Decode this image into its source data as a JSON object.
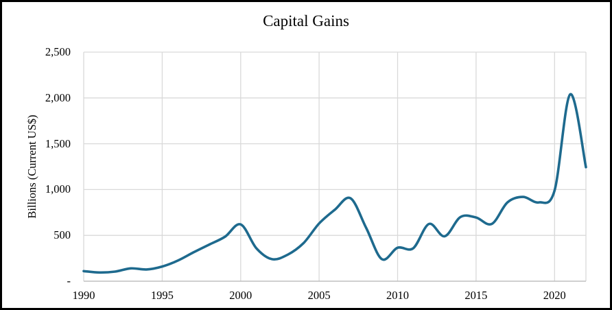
{
  "frame": {
    "border_color": "#000000",
    "background_color": "#ffffff"
  },
  "chart_data": {
    "type": "line",
    "title": "Capital Gains",
    "xlabel": "",
    "ylabel": "Billions (Current US$)",
    "x": [
      1990,
      1991,
      1992,
      1993,
      1994,
      1995,
      1996,
      1997,
      1998,
      1999,
      2000,
      2001,
      2002,
      2003,
      2004,
      2005,
      2006,
      2007,
      2008,
      2009,
      2010,
      2011,
      2012,
      2013,
      2014,
      2015,
      2016,
      2017,
      2018,
      2019,
      2020,
      2021,
      2022
    ],
    "values": [
      110,
      95,
      105,
      140,
      128,
      160,
      225,
      315,
      400,
      485,
      620,
      360,
      240,
      290,
      415,
      630,
      780,
      905,
      580,
      240,
      365,
      360,
      625,
      490,
      700,
      695,
      625,
      860,
      920,
      860,
      990,
      2040,
      1245
    ],
    "series_name": "Capital Gains",
    "xlim": [
      1990,
      2022
    ],
    "ylim": [
      0,
      2500
    ],
    "x_ticks": [
      1990,
      1995,
      2000,
      2005,
      2010,
      2015,
      2020
    ],
    "x_tick_labels": [
      "1990",
      "1995",
      "2000",
      "2005",
      "2010",
      "2015",
      "2020"
    ],
    "y_ticks": [
      0,
      500,
      1000,
      1500,
      2000,
      2500
    ],
    "y_tick_labels": [
      "-",
      "500",
      "1,000",
      "1,500",
      "2,000",
      "2,500"
    ],
    "grid": true,
    "smooth": true,
    "legend": "none",
    "line_color": "#1e6a8e",
    "gridline_color": "#d9d9d9",
    "axis_line_color": "#bfbfbf"
  }
}
